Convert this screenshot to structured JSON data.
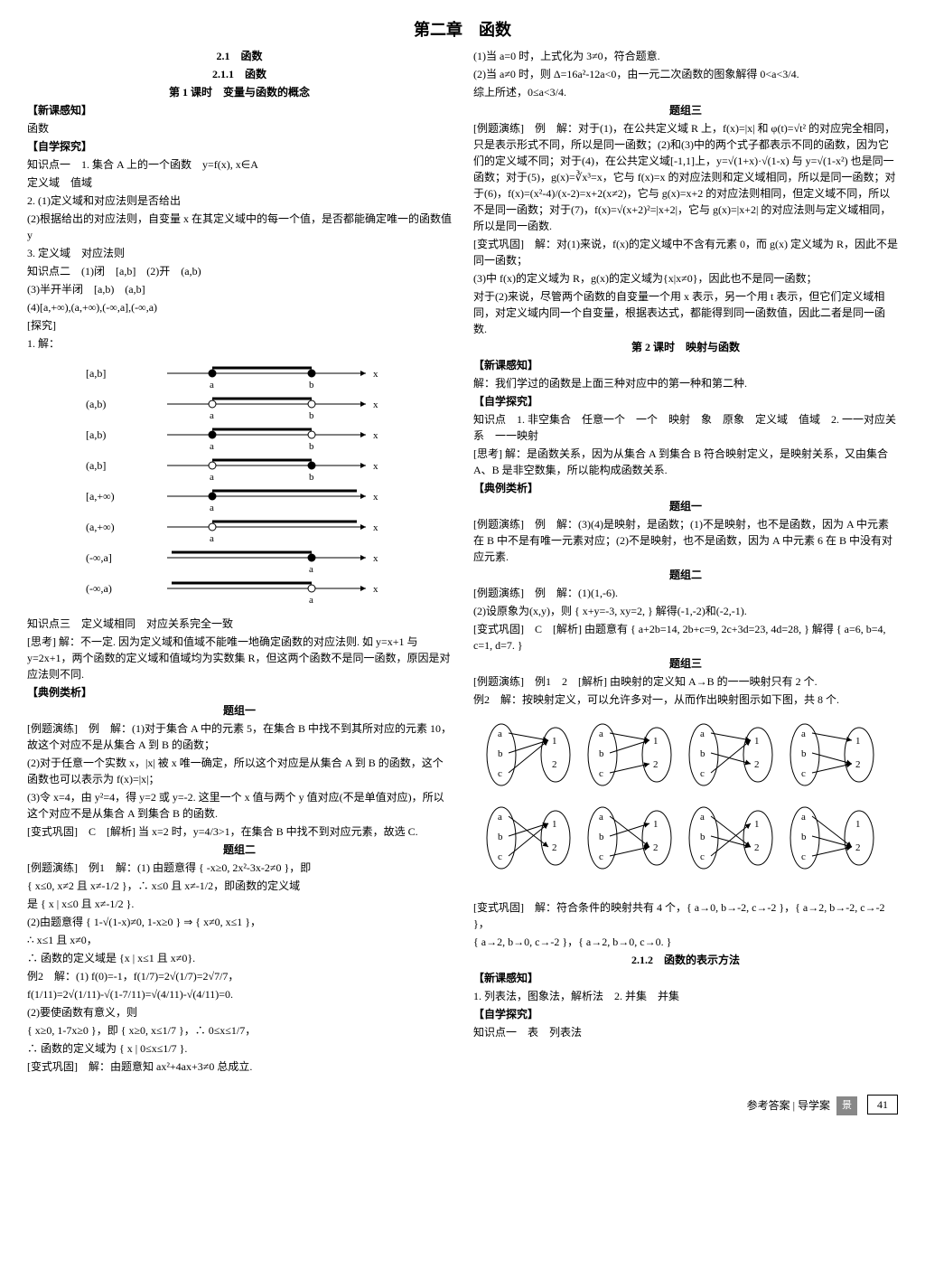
{
  "pageTitle": "第二章　函数",
  "footer": {
    "ref": "参考答案 | 导学案",
    "badge": "景",
    "page": "41"
  },
  "left": {
    "h1": "2.1　函数",
    "h2": "2.1.1　函数",
    "h3": "第 1 课时　变量与函数的概念",
    "p1": "【新课感知】",
    "p2": "函数",
    "p3": "【自学探究】",
    "p4": "知识点一　1. 集合 A 上的一个函数　y=f(x), x∈A",
    "p5": "定义域　值域",
    "p6": "2. (1)定义域和对应法则是否给出",
    "p7": "(2)根据给出的对应法则，自变量 x 在其定义域中的每一个值，是否都能确定唯一的函数值 y",
    "p8": "3. 定义域　对应法则",
    "p9": "知识点二　(1)闭　[a,b]　(2)开　(a,b)",
    "p10": "(3)半开半闭　[a,b)　(a,b]",
    "p11": "(4)[a,+∞),(a,+∞),(-∞,a],(-∞,a)",
    "p12": "[探究]",
    "p13": "1. 解：",
    "intervals": [
      "[a,b]",
      "(a,b)",
      "[a,b)",
      "(a,b]",
      "[a,+∞)",
      "(a,+∞)",
      "(-∞,a]",
      "(-∞,a)"
    ],
    "p14": "知识点三　定义域相同　对应关系完全一致",
    "p15": "[思考] 解：不一定. 因为定义域和值域不能唯一地确定函数的对应法则. 如 y=x+1 与 y=2x+1，两个函数的定义域和值域均为实数集 R，但这两个函数不是同一函数，原因是对应法则不同.",
    "p16": "【典例类析】",
    "g1": "题组一",
    "p17": "[例题演练]　例　解：(1)对于集合 A 中的元素 5，在集合 B 中找不到其所对应的元素 10，故这个对应不是从集合 A 到 B 的函数；",
    "p18": "(2)对于任意一个实数 x，|x| 被 x 唯一确定，所以这个对应是从集合 A 到 B 的函数，这个函数也可以表示为 f(x)=|x|；",
    "p19": "(3)令 x=4，由 y²=4，得 y=2 或 y=-2. 这里一个 x 值与两个 y 值对应(不是单值对应)，所以这个对应不是从集合 A 到集合 B 的函数.",
    "p20": "[变式巩固]　C　[解析] 当 x=2 时，y=4/3>1，在集合 B 中找不到对应元素，故选 C.",
    "g2": "题组二",
    "p21": "[例题演练]　例1　解：(1) 由题意得 { -x≥0, 2x²-3x-2≠0 }，即",
    "p22": "{ x≤0, x≠2 且 x≠-1/2 }，∴ x≤0 且 x≠-1/2，即函数的定义域",
    "p23": "是 { x | x≤0 且 x≠-1/2 }.",
    "p24": "(2)由题意得 { 1-√(1-x)≠0, 1-x≥0 } ⇒ { x≠0, x≤1 }，",
    "p25": "∴ x≤1 且 x≠0，",
    "p26": "∴ 函数的定义域是 {x | x≤1 且 x≠0}.",
    "p27": "例2　解：(1) f(0)=-1，f(1/7)=2√(1/7)=2√7/7，",
    "p28": "f(1/11)=2√(1/11)-√(1-7/11)=√(4/11)-√(4/11)=0.",
    "p29": "(2)要使函数有意义，则",
    "p30": "{ x≥0, 1-7x≥0 }，即 { x≥0, x≤1/7 }，∴ 0≤x≤1/7，",
    "p31": "∴ 函数的定义域为 { x | 0≤x≤1/7 }.",
    "p32": "[变式巩固]　解：由题意知 ax²+4ax+3≠0 总成立."
  },
  "right": {
    "p1": "(1)当 a=0 时，上式化为 3≠0，符合题意.",
    "p2": "(2)当 a≠0 时，则 Δ=16a²-12a<0，由一元二次函数的图象解得 0<a<3/4.",
    "p3": "综上所述，0≤a<3/4.",
    "g3": "题组三",
    "p4": "[例题演练]　例　解：对于(1)，在公共定义域 R 上，f(x)=|x| 和 φ(t)=√t² 的对应完全相同，只是表示形式不同，所以是同一函数；(2)和(3)中的两个式子都表示不同的函数，因为它们的定义域不同；对于(4)，在公共定义域[-1,1]上，y=√(1+x)·√(1-x) 与 y=√(1-x²) 也是同一函数；对于(5)，g(x)=∛x³=x，它与 f(x)=x 的对应法则和定义域相同，所以是同一函数；对于(6)，f(x)=(x²-4)/(x-2)=x+2(x≠2)，它与 g(x)=x+2 的对应法则相同，但定义域不同，所以不是同一函数；对于(7)，f(x)=√(x+2)²=|x+2|，它与 g(x)=|x+2| 的对应法则与定义域相同，所以是同一函数.",
    "p5": "[变式巩固]　解：对(1)来说，f(x)的定义域中不含有元素 0，而 g(x) 定义域为 R，因此不是同一函数；",
    "p6": "(3)中 f(x)的定义域为 R，g(x)的定义域为{x|x≠0}，因此也不是同一函数；",
    "p7": "对于(2)来说，尽管两个函数的自变量一个用 x 表示，另一个用 t 表示，但它们定义域相同，对定义域内同一个自变量，根据表达式，都能得到同一函数值，因此二者是同一函数.",
    "h4": "第 2 课时　映射与函数",
    "p8": "【新课感知】",
    "p9": "解：我们学过的函数是上面三种对应中的第一种和第二种.",
    "p10": "【自学探究】",
    "p11": "知识点　1. 非空集合　任意一个　一个　映射　象　原象　定义域　值域　2. 一一对应关系　一一映射",
    "p12": "[思考] 解：是函数关系，因为从集合 A 到集合 B 符合映射定义，是映射关系，又由集合 A、B 是非空数集，所以能构成函数关系.",
    "p13": "【典例类析】",
    "g1b": "题组一",
    "p14": "[例题演练]　例　解：(3)(4)是映射，是函数；(1)不是映射，也不是函数，因为 A 中元素在 B 中不是有唯一元素对应；(2)不是映射，也不是函数，因为 A 中元素 6 在 B 中没有对应元素.",
    "g2b": "题组二",
    "p15": "[例题演练]　例　解：(1)(1,-6).",
    "p16": "(2)设原象为(x,y)，则 { x+y=-3, xy=2, } 解得(-1,-2)和(-2,-1).",
    "p17": "[变式巩固]　C　[解析] 由题意有 { a+2b=14, 2b+c=9, 2c+3d=23, 4d=28, } 解得 { a=6, b=4, c=1, d=7. }",
    "g3b": "题组三",
    "p18": "[例题演练]　例1　2　[解析] 由映射的定义知 A→B 的一一映射只有 2 个.",
    "p19": "例2　解：按映射定义，可以允许多对一，从而作出映射图示如下图，共 8 个.",
    "mapLeft": [
      "a",
      "b",
      "c"
    ],
    "mapRight": [
      "1",
      "2"
    ],
    "p20": "[变式巩固]　解：符合条件的映射共有 4 个，{ a→0, b→-2, c→-2 }，{ a→2, b→-2, c→-2 }，",
    "p21": "{ a→2, b→0, c→-2 }，{ a→2, b→0, c→0. }",
    "h5": "2.1.2　函数的表示方法",
    "p22": "【新课感知】",
    "p23": "1. 列表法，图象法，解析法　2. 并集　并集",
    "p24": "【自学探究】",
    "p25": "知识点一　表　列表法"
  }
}
